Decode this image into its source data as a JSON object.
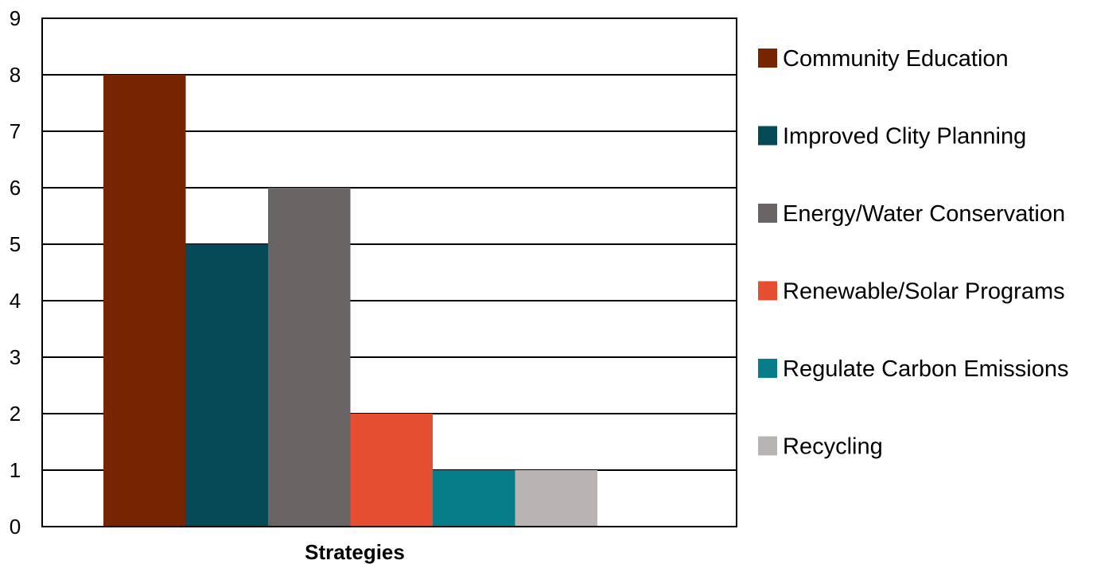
{
  "chart_data": {
    "type": "bar",
    "title": "",
    "xlabel": "Strategies",
    "ylabel": "",
    "ylim": [
      0,
      9
    ],
    "yticks": [
      0,
      1,
      2,
      3,
      4,
      5,
      6,
      7,
      8,
      9
    ],
    "grid": true,
    "legend_position": "right",
    "categories": [
      "Strategies"
    ],
    "series": [
      {
        "name": "Community Education",
        "values": [
          8
        ],
        "color": "#772400"
      },
      {
        "name": "Improved Clity Planning",
        "values": [
          5
        ],
        "color": "#064957"
      },
      {
        "name": "Energy/Water Conservation",
        "values": [
          6
        ],
        "color": "#696564"
      },
      {
        "name": "Renewable/Solar Programs",
        "values": [
          2
        ],
        "color": "#e54e31"
      },
      {
        "name": "Regulate Carbon Emissions",
        "values": [
          1
        ],
        "color": "#077d8a"
      },
      {
        "name": "Recycling",
        "values": [
          1
        ],
        "color": "#b8b4b3"
      }
    ]
  }
}
